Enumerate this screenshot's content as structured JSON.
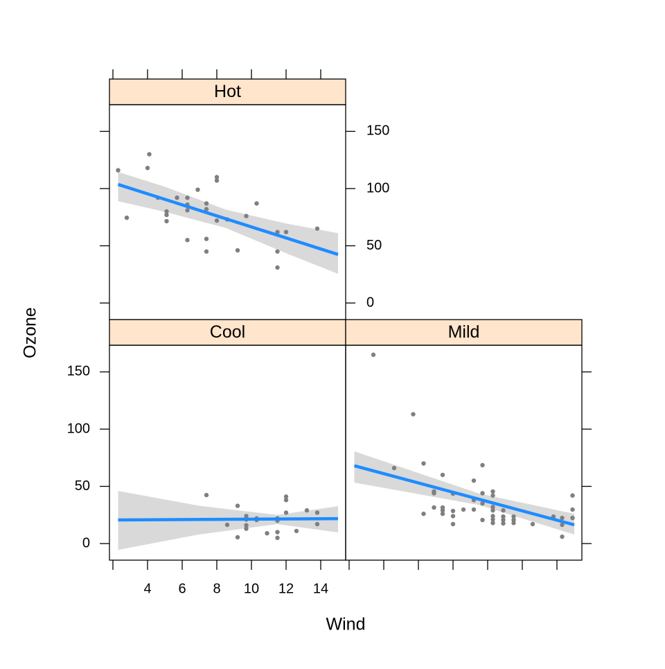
{
  "chart_data": {
    "type": "scatter",
    "x_label": "Wind",
    "y_label": "Ozone",
    "xlim": [
      1.8,
      15.44
    ],
    "ylim": [
      -14.5,
      173.3
    ],
    "xticks": [
      {
        "value": 2,
        "label": null
      },
      4,
      6,
      8,
      10,
      12,
      14
    ],
    "yticks": [
      0,
      50,
      100,
      150
    ],
    "point_color": "#7f7f7f",
    "line_color": "#1e8cff",
    "band_color": "#d9d9d9",
    "strip_color": "#ffe5cc",
    "panels": [
      {
        "title": "Hot",
        "x": [
          2.3,
          2.8,
          4.0,
          4.1,
          4.6,
          5.1,
          5.1,
          5.1,
          5.7,
          6.3,
          6.3,
          6.3,
          6.3,
          6.9,
          7.4,
          7.4,
          7.4,
          7.4,
          8.0,
          8.0,
          8.0,
          8.6,
          9.2,
          9.7,
          10.3,
          11.5,
          11.5,
          11.5,
          12.0,
          13.8
        ],
        "y": [
          116,
          74.5,
          118,
          130,
          92,
          80,
          77,
          71.5,
          92,
          92,
          86,
          81,
          55,
          99,
          87,
          82,
          56,
          45,
          110,
          107,
          72,
          73,
          46,
          76,
          87,
          62,
          45,
          31,
          62,
          65
        ],
        "fit": {
          "x": [
            2.3,
            15.0
          ],
          "y": [
            103.6,
            42.4
          ]
        },
        "band": {
          "x": [
            2.3,
            5.0,
            8.5,
            12.0,
            15.0
          ],
          "lower": [
            89,
            79.6,
            65.7,
            43.5,
            25.5
          ],
          "upper": [
            114.5,
            101.6,
            81.7,
            69.5,
            61
          ]
        }
      },
      {
        "title": "Cool",
        "x": [
          7.4,
          8.6,
          9.2,
          9.2,
          9.7,
          9.7,
          9.7,
          9.7,
          10.3,
          10.3,
          10.9,
          11.5,
          11.5,
          11.5,
          11.5,
          12.0,
          12.0,
          12.0,
          12.6,
          13.2,
          13.8,
          13.8
        ],
        "y": [
          42.4,
          16.4,
          33,
          5.5,
          24,
          21,
          16,
          13,
          22,
          20.6,
          9,
          22,
          20,
          10,
          5,
          41,
          38,
          27,
          11,
          29,
          27,
          17
        ],
        "fit": {
          "x": [
            2.3,
            15.0
          ],
          "y": [
            20.6,
            21.8
          ]
        },
        "band": {
          "x": [
            2.3,
            7.0,
            11.5,
            15.0
          ],
          "lower": [
            -5.5,
            8,
            17,
            9.7
          ],
          "upper": [
            46,
            33,
            25,
            32.7
          ]
        }
      },
      {
        "title": "Mild",
        "x": [
          3.4,
          4.6,
          5.7,
          6.3,
          6.3,
          6.9,
          6.9,
          6.9,
          7.4,
          7.4,
          7.4,
          7.4,
          8.0,
          8.0,
          8.0,
          8.0,
          8.6,
          9.2,
          9.2,
          9.2,
          9.7,
          9.7,
          9.7,
          9.7,
          10.3,
          10.3,
          10.3,
          10.3,
          10.3,
          10.3,
          10.3,
          10.9,
          10.9,
          10.9,
          10.9,
          11.5,
          11.5,
          11.5,
          12.6,
          13.8,
          14.3,
          14.3,
          14.3,
          14.9,
          14.9,
          14.9
        ],
        "y": [
          165,
          66,
          113,
          26,
          70,
          44,
          45.5,
          31.5,
          31.5,
          29,
          26,
          60,
          28.5,
          24,
          17,
          43.6,
          29.7,
          55,
          38,
          29.7,
          68.5,
          44,
          35,
          20.6,
          45.5,
          42,
          32,
          29,
          24,
          21,
          18,
          29,
          23.6,
          20.6,
          17.6,
          23.6,
          20.6,
          18,
          17,
          23.6,
          22.4,
          16.4,
          6,
          42,
          29.7,
          22.4
        ],
        "fit": {
          "x": [
            2.3,
            15.0
          ],
          "y": [
            68,
            16.4
          ]
        },
        "band": {
          "x": [
            2.3,
            9.5,
            15.0
          ],
          "lower": [
            53.3,
            33.7,
            7.9
          ],
          "upper": [
            80.6,
            43.7,
            26
          ]
        }
      }
    ]
  }
}
